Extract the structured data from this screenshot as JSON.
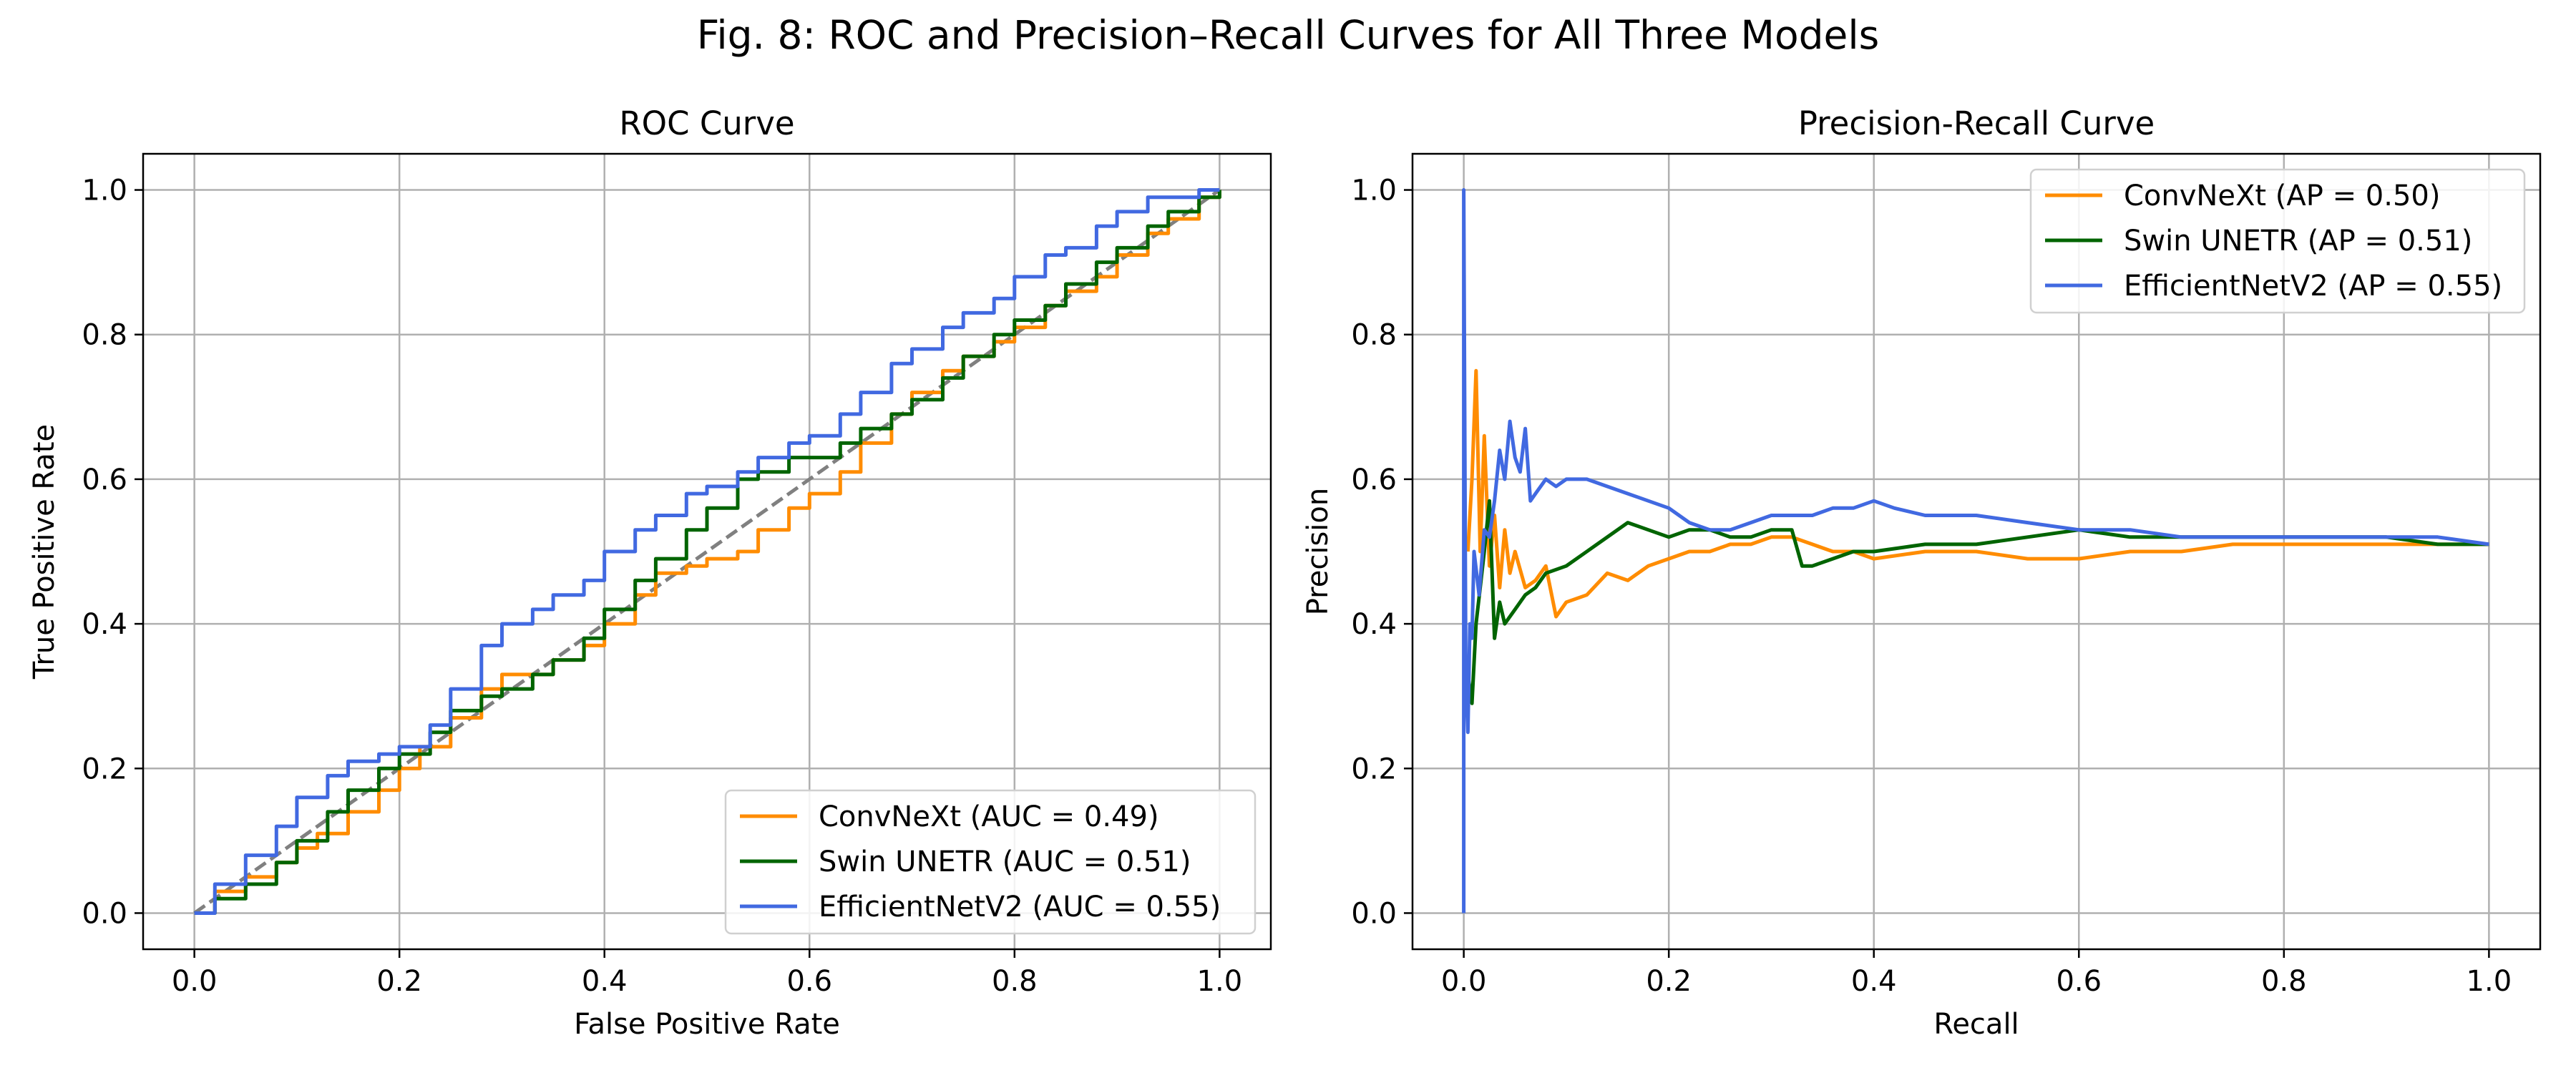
{
  "figure": {
    "suptitle": "Fig. 8: ROC and Precision–Recall Curves for All Three Models"
  },
  "colors": {
    "ConvNeXt": "#ff8c00",
    "Swin UNETR": "#006400",
    "EfficientNetV2": "#4169e1",
    "diagonal": "#808080",
    "grid": "#b0b0b0"
  },
  "chart_data": [
    {
      "type": "line",
      "title": "ROC Curve",
      "xlabel": "False Positive Rate",
      "ylabel": "True Positive Rate",
      "xlim": [
        -0.05,
        1.05
      ],
      "ylim": [
        -0.05,
        1.05
      ],
      "xticks": [
        "0.0",
        "0.2",
        "0.4",
        "0.6",
        "0.8",
        "1.0"
      ],
      "yticks": [
        "0.0",
        "0.2",
        "0.4",
        "0.6",
        "0.8",
        "1.0"
      ],
      "grid": true,
      "legend_position": "lower right",
      "reference_line": {
        "style": "dashed",
        "x": [
          0,
          1
        ],
        "y": [
          0,
          1
        ]
      },
      "series": [
        {
          "name": "ConvNeXt (AUC = 0.49)",
          "key": "ConvNeXt",
          "x": [
            0,
            0.02,
            0.05,
            0.08,
            0.1,
            0.12,
            0.15,
            0.18,
            0.2,
            0.22,
            0.25,
            0.28,
            0.3,
            0.33,
            0.35,
            0.38,
            0.4,
            0.43,
            0.45,
            0.48,
            0.5,
            0.53,
            0.55,
            0.58,
            0.6,
            0.63,
            0.65,
            0.68,
            0.7,
            0.73,
            0.75,
            0.78,
            0.8,
            0.83,
            0.85,
            0.88,
            0.9,
            0.93,
            0.95,
            0.98,
            1.0
          ],
          "y": [
            0,
            0.03,
            0.05,
            0.07,
            0.09,
            0.11,
            0.14,
            0.17,
            0.2,
            0.23,
            0.27,
            0.31,
            0.33,
            0.33,
            0.35,
            0.37,
            0.4,
            0.44,
            0.47,
            0.48,
            0.49,
            0.5,
            0.53,
            0.56,
            0.58,
            0.61,
            0.65,
            0.69,
            0.72,
            0.75,
            0.77,
            0.79,
            0.81,
            0.84,
            0.86,
            0.88,
            0.91,
            0.94,
            0.96,
            0.99,
            1.0
          ]
        },
        {
          "name": "Swin UNETR (AUC = 0.51)",
          "key": "Swin UNETR",
          "x": [
            0,
            0.02,
            0.05,
            0.08,
            0.1,
            0.13,
            0.15,
            0.18,
            0.2,
            0.23,
            0.25,
            0.28,
            0.3,
            0.33,
            0.35,
            0.38,
            0.4,
            0.43,
            0.45,
            0.48,
            0.5,
            0.53,
            0.55,
            0.58,
            0.6,
            0.63,
            0.65,
            0.68,
            0.7,
            0.73,
            0.75,
            0.78,
            0.8,
            0.83,
            0.85,
            0.88,
            0.9,
            0.93,
            0.95,
            0.98,
            1.0
          ],
          "y": [
            0,
            0.02,
            0.04,
            0.07,
            0.1,
            0.14,
            0.17,
            0.2,
            0.22,
            0.25,
            0.28,
            0.3,
            0.31,
            0.33,
            0.35,
            0.38,
            0.42,
            0.46,
            0.49,
            0.53,
            0.56,
            0.6,
            0.61,
            0.63,
            0.63,
            0.65,
            0.67,
            0.69,
            0.71,
            0.74,
            0.77,
            0.8,
            0.82,
            0.84,
            0.87,
            0.9,
            0.92,
            0.95,
            0.97,
            0.99,
            1.0
          ]
        },
        {
          "name": "EfficientNetV2 (AUC = 0.55)",
          "key": "EfficientNetV2",
          "x": [
            0,
            0.02,
            0.05,
            0.08,
            0.1,
            0.13,
            0.15,
            0.18,
            0.2,
            0.23,
            0.25,
            0.28,
            0.3,
            0.33,
            0.35,
            0.38,
            0.4,
            0.43,
            0.45,
            0.48,
            0.5,
            0.53,
            0.55,
            0.58,
            0.6,
            0.63,
            0.65,
            0.68,
            0.7,
            0.73,
            0.75,
            0.78,
            0.8,
            0.83,
            0.85,
            0.88,
            0.9,
            0.93,
            0.95,
            0.98,
            1.0
          ],
          "y": [
            0,
            0.04,
            0.08,
            0.12,
            0.16,
            0.19,
            0.21,
            0.22,
            0.23,
            0.26,
            0.31,
            0.37,
            0.4,
            0.42,
            0.44,
            0.46,
            0.5,
            0.53,
            0.55,
            0.58,
            0.59,
            0.61,
            0.63,
            0.65,
            0.66,
            0.69,
            0.72,
            0.76,
            0.78,
            0.81,
            0.83,
            0.85,
            0.88,
            0.91,
            0.92,
            0.95,
            0.97,
            0.99,
            0.99,
            1.0,
            1.0
          ]
        }
      ]
    },
    {
      "type": "line",
      "title": "Precision-Recall Curve",
      "xlabel": "Recall",
      "ylabel": "Precision",
      "xlim": [
        -0.05,
        1.05
      ],
      "ylim": [
        -0.05,
        1.05
      ],
      "xticks": [
        "0.0",
        "0.2",
        "0.4",
        "0.6",
        "0.8",
        "1.0"
      ],
      "yticks": [
        "0.0",
        "0.2",
        "0.4",
        "0.6",
        "0.8",
        "1.0"
      ],
      "grid": true,
      "legend_position": "upper right",
      "series": [
        {
          "name": "ConvNeXt (AP = 0.50)",
          "key": "ConvNeXt",
          "x": [
            0.004,
            0.008,
            0.012,
            0.016,
            0.02,
            0.025,
            0.03,
            0.035,
            0.04,
            0.045,
            0.05,
            0.06,
            0.07,
            0.08,
            0.09,
            0.1,
            0.12,
            0.14,
            0.16,
            0.18,
            0.2,
            0.22,
            0.24,
            0.26,
            0.28,
            0.3,
            0.32,
            0.34,
            0.36,
            0.38,
            0.4,
            0.45,
            0.5,
            0.55,
            0.6,
            0.65,
            0.7,
            0.75,
            0.8,
            0.85,
            0.9,
            0.95,
            1.0
          ],
          "y": [
            0.5,
            0.6,
            0.75,
            0.5,
            0.66,
            0.48,
            0.55,
            0.45,
            0.53,
            0.47,
            0.5,
            0.45,
            0.46,
            0.48,
            0.41,
            0.43,
            0.44,
            0.47,
            0.46,
            0.48,
            0.49,
            0.5,
            0.5,
            0.51,
            0.51,
            0.52,
            0.52,
            0.51,
            0.5,
            0.5,
            0.49,
            0.5,
            0.5,
            0.49,
            0.49,
            0.5,
            0.5,
            0.51,
            0.51,
            0.51,
            0.51,
            0.51,
            0.51
          ]
        },
        {
          "name": "Swin UNETR (AP = 0.51)",
          "key": "Swin UNETR",
          "x": [
            0.004,
            0.008,
            0.012,
            0.016,
            0.02,
            0.025,
            0.03,
            0.035,
            0.04,
            0.05,
            0.06,
            0.07,
            0.08,
            0.1,
            0.12,
            0.14,
            0.16,
            0.18,
            0.2,
            0.22,
            0.24,
            0.26,
            0.28,
            0.3,
            0.32,
            0.33,
            0.34,
            0.36,
            0.38,
            0.4,
            0.45,
            0.5,
            0.55,
            0.6,
            0.65,
            0.7,
            0.75,
            0.8,
            0.85,
            0.9,
            0.95,
            1.0
          ],
          "y": [
            0.33,
            0.29,
            0.4,
            0.45,
            0.5,
            0.57,
            0.38,
            0.43,
            0.4,
            0.42,
            0.44,
            0.45,
            0.47,
            0.48,
            0.5,
            0.52,
            0.54,
            0.53,
            0.52,
            0.53,
            0.53,
            0.52,
            0.52,
            0.53,
            0.53,
            0.48,
            0.48,
            0.49,
            0.5,
            0.5,
            0.51,
            0.51,
            0.52,
            0.53,
            0.52,
            0.52,
            0.52,
            0.52,
            0.52,
            0.52,
            0.51,
            0.51
          ]
        },
        {
          "name": "EfficientNetV2 (AP = 0.55)",
          "key": "EfficientNetV2",
          "x": [
            0.0,
            0.0,
            0.002,
            0.004,
            0.006,
            0.008,
            0.01,
            0.015,
            0.02,
            0.025,
            0.03,
            0.035,
            0.04,
            0.045,
            0.05,
            0.055,
            0.06,
            0.065,
            0.07,
            0.08,
            0.09,
            0.1,
            0.12,
            0.14,
            0.16,
            0.18,
            0.2,
            0.22,
            0.24,
            0.26,
            0.28,
            0.3,
            0.32,
            0.34,
            0.36,
            0.38,
            0.4,
            0.42,
            0.45,
            0.5,
            0.55,
            0.6,
            0.65,
            0.7,
            0.75,
            0.8,
            0.85,
            0.9,
            0.95,
            1.0
          ],
          "y": [
            0.0,
            1.0,
            0.33,
            0.25,
            0.4,
            0.38,
            0.5,
            0.44,
            0.53,
            0.52,
            0.57,
            0.64,
            0.6,
            0.68,
            0.63,
            0.61,
            0.67,
            0.57,
            0.58,
            0.6,
            0.59,
            0.6,
            0.6,
            0.59,
            0.58,
            0.57,
            0.56,
            0.54,
            0.53,
            0.53,
            0.54,
            0.55,
            0.55,
            0.55,
            0.56,
            0.56,
            0.57,
            0.56,
            0.55,
            0.55,
            0.54,
            0.53,
            0.53,
            0.52,
            0.52,
            0.52,
            0.52,
            0.52,
            0.52,
            0.51
          ]
        }
      ]
    }
  ]
}
